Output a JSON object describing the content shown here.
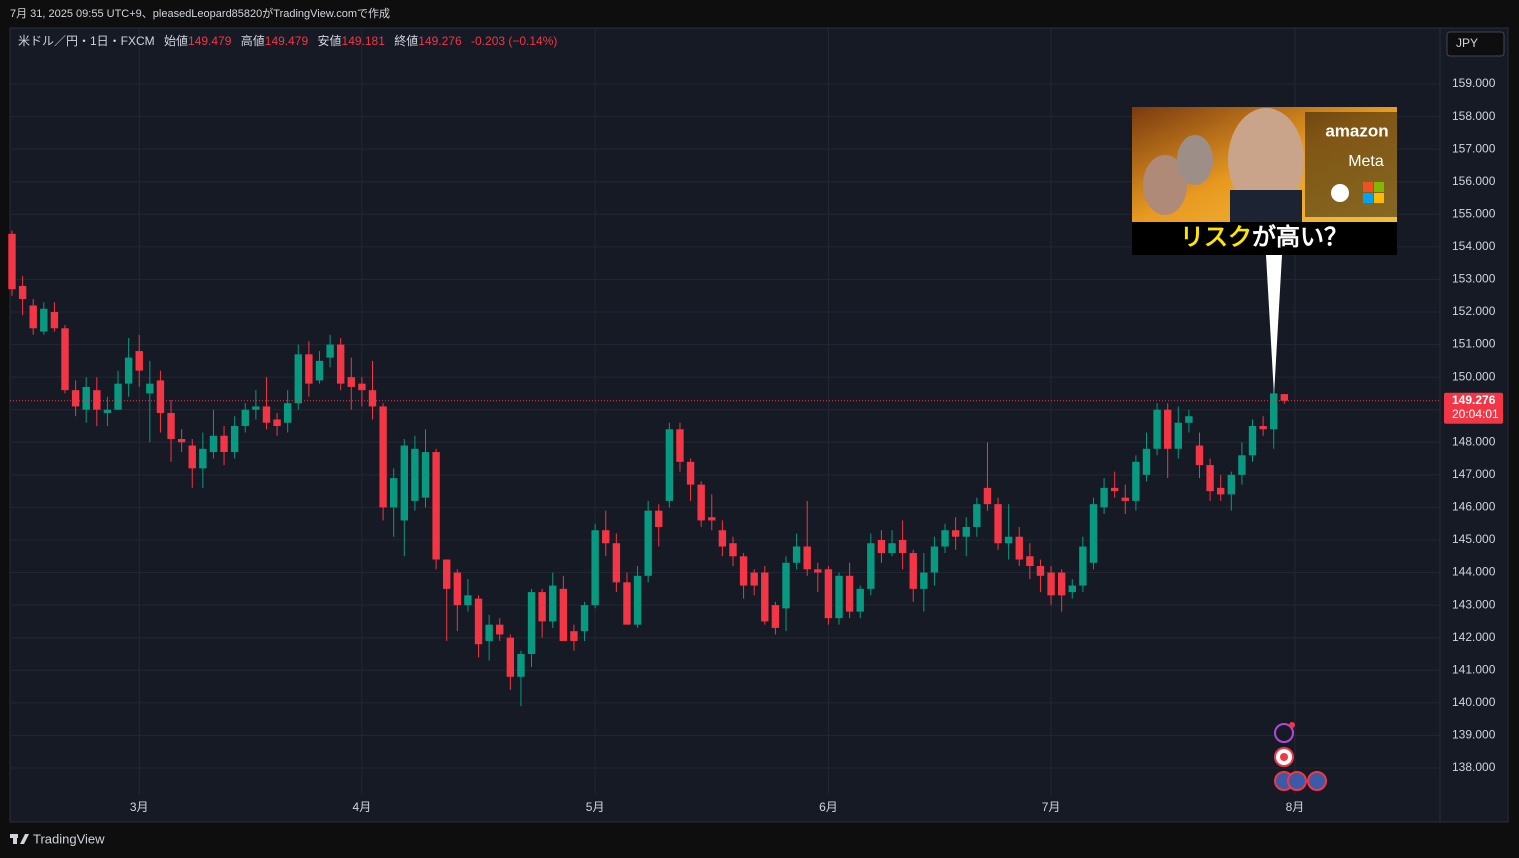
{
  "caption": "7月 31, 2025 09:55 UTC+9、pleasedLeopard85820がTradingView.comで作成",
  "currency_button": "JPY",
  "footer_brand": "TradingView",
  "annotation": {
    "caption_parts": [
      "リスク",
      "が高い？"
    ],
    "logos": [
      "amazon",
      "Meta"
    ]
  },
  "chart_data": {
    "type": "candlestick",
    "title": "米ドル／円・1日・FXCM",
    "ohlc_labels": [
      "始値",
      "高値",
      "安値",
      "終値"
    ],
    "change_label": "-0.203 (−0.14%)",
    "countdown": "20:04:01",
    "up_color": "#089981",
    "down_color": "#f23645",
    "grid": true,
    "xlim": [
      0,
      134.4
    ],
    "xticks": [
      {
        "value": 12,
        "label": "3月"
      },
      {
        "value": 33,
        "label": "4月"
      },
      {
        "value": 55,
        "label": "5月"
      },
      {
        "value": 77,
        "label": "6月"
      },
      {
        "value": 98,
        "label": "7月"
      },
      {
        "value": 121,
        "label": "8月"
      }
    ],
    "ylim": [
      137.17,
      160.72
    ],
    "yticks": [
      {
        "value": 138,
        "label": "138.000"
      },
      {
        "value": 139,
        "label": "139.000"
      },
      {
        "value": 140,
        "label": "140.000"
      },
      {
        "value": 141,
        "label": "141.000"
      },
      {
        "value": 142,
        "label": "142.000"
      },
      {
        "value": 143,
        "label": "143.000"
      },
      {
        "value": 144,
        "label": "144.000"
      },
      {
        "value": 145,
        "label": "145.000"
      },
      {
        "value": 146,
        "label": "146.000"
      },
      {
        "value": 147,
        "label": "147.000"
      },
      {
        "value": 148,
        "label": "148.000"
      },
      {
        "value": 149,
        "label": "149.000"
      },
      {
        "value": 150,
        "label": "150.000"
      },
      {
        "value": 151,
        "label": "151.000"
      },
      {
        "value": 152,
        "label": "152.000"
      },
      {
        "value": 153,
        "label": "153.000"
      },
      {
        "value": 154,
        "label": "154.000"
      },
      {
        "value": 155,
        "label": "155.000"
      },
      {
        "value": 156,
        "label": "156.000"
      },
      {
        "value": 157,
        "label": "157.000"
      },
      {
        "value": 158,
        "label": "158.000"
      },
      {
        "value": 159,
        "label": "159.000"
      }
    ],
    "open": [
      154.4,
      152.8,
      152.2,
      151.4,
      152.0,
      151.5,
      149.6,
      149.0,
      149.6,
      148.9,
      149.0,
      149.8,
      150.8,
      149.5,
      149.9,
      148.9,
      148.1,
      147.9,
      147.2,
      147.7,
      148.2,
      147.7,
      148.5,
      149.0,
      149.1,
      148.7,
      148.6,
      149.2,
      150.7,
      149.9,
      150.6,
      151.0,
      150.0,
      149.8,
      149.6,
      149.1,
      146.0,
      145.6,
      146.2,
      146.3,
      147.7,
      144.4,
      144.0,
      143.0,
      143.2,
      141.9,
      142.4,
      142.0,
      140.8,
      141.5,
      143.4,
      142.5,
      143.5,
      142.2,
      142.2,
      143.0,
      145.3,
      144.9,
      143.7,
      142.4,
      143.9,
      145.9,
      146.2,
      148.4,
      147.4,
      146.7,
      145.7,
      145.3,
      144.9,
      144.5,
      144.0,
      144.0,
      143.0,
      142.9,
      144.3,
      144.8,
      144.1,
      144.1,
      142.6,
      143.9,
      142.8,
      143.5,
      145.0,
      144.6,
      145.0,
      144.6,
      143.5,
      144.0,
      144.8,
      145.3,
      145.1,
      145.4,
      146.6,
      146.1,
      144.9,
      145.1,
      144.5,
      144.2,
      144.0,
      144.0,
      143.4,
      143.6,
      144.3,
      146.0,
      146.6,
      146.3,
      146.2,
      147.0,
      147.8,
      149.0,
      147.8,
      148.6,
      147.9,
      147.3,
      146.6,
      146.4,
      147.0,
      147.6,
      148.5,
      148.4,
      149.479
    ],
    "high": [
      154.5,
      153.1,
      152.4,
      152.3,
      152.3,
      151.6,
      149.9,
      150.0,
      150.0,
      149.4,
      150.2,
      151.2,
      151.3,
      150.5,
      150.2,
      149.3,
      148.4,
      148.1,
      148.3,
      149.0,
      148.5,
      148.8,
      149.2,
      149.6,
      150.0,
      148.9,
      149.6,
      151.0,
      151.1,
      150.8,
      151.3,
      151.2,
      150.6,
      150.0,
      150.5,
      149.2,
      147.2,
      148.1,
      148.2,
      148.4,
      147.8,
      144.4,
      144.1,
      143.8,
      143.3,
      142.7,
      142.6,
      142.1,
      141.6,
      143.5,
      143.5,
      144.0,
      143.9,
      142.4,
      143.1,
      145.5,
      145.9,
      145.2,
      144.0,
      144.2,
      146.2,
      146.1,
      148.6,
      148.6,
      147.5,
      146.8,
      146.4,
      145.6,
      145.1,
      144.6,
      144.1,
      144.2,
      143.1,
      144.5,
      145.2,
      146.2,
      144.3,
      144.2,
      144.0,
      144.3,
      143.6,
      145.2,
      145.3,
      145.3,
      145.6,
      144.7,
      144.6,
      145.1,
      145.5,
      145.7,
      145.7,
      146.3,
      148.0,
      146.3,
      146.1,
      145.4,
      144.9,
      144.4,
      144.2,
      144.1,
      143.8,
      145.1,
      146.3,
      146.9,
      147.1,
      146.7,
      147.6,
      148.3,
      149.2,
      149.2,
      149.1,
      149.0,
      148.3,
      147.5,
      147.0,
      147.1,
      148.0,
      148.7,
      148.8,
      149.6,
      149.479
    ],
    "low": [
      152.5,
      151.9,
      151.3,
      151.3,
      151.4,
      149.5,
      148.8,
      148.6,
      148.5,
      148.5,
      149.0,
      149.4,
      149.7,
      148.0,
      148.3,
      147.4,
      147.7,
      146.6,
      146.6,
      147.5,
      147.3,
      147.5,
      148.3,
      148.7,
      148.4,
      148.2,
      148.3,
      149.0,
      149.4,
      149.8,
      150.3,
      149.6,
      149.0,
      149.1,
      148.7,
      145.6,
      145.1,
      144.5,
      145.9,
      146.0,
      144.1,
      141.9,
      142.2,
      142.8,
      141.4,
      141.3,
      141.9,
      140.4,
      139.9,
      141.1,
      142.0,
      142.3,
      141.9,
      141.6,
      141.9,
      142.9,
      144.5,
      143.4,
      142.4,
      142.3,
      143.7,
      144.8,
      146.0,
      147.1,
      146.2,
      145.4,
      145.3,
      144.5,
      144.2,
      143.2,
      143.3,
      142.4,
      142.1,
      142.2,
      144.1,
      143.9,
      143.4,
      142.4,
      142.4,
      142.6,
      142.6,
      143.3,
      144.3,
      144.5,
      144.1,
      143.1,
      142.8,
      143.6,
      144.6,
      144.7,
      144.5,
      145.1,
      145.9,
      144.7,
      144.4,
      144.2,
      143.8,
      143.4,
      143.0,
      142.8,
      143.2,
      143.4,
      144.1,
      145.8,
      146.3,
      145.8,
      145.9,
      146.8,
      147.6,
      146.9,
      147.5,
      148.3,
      146.9,
      146.2,
      146.2,
      145.9,
      146.7,
      147.4,
      148.2,
      147.8,
      149.181
    ],
    "close": [
      152.7,
      152.4,
      151.5,
      152.1,
      151.5,
      149.6,
      149.1,
      149.7,
      149.0,
      149.0,
      149.8,
      150.6,
      150.2,
      149.8,
      148.9,
      148.1,
      148.0,
      147.2,
      147.8,
      148.2,
      147.7,
      148.5,
      149.0,
      149.1,
      148.6,
      148.5,
      149.2,
      150.7,
      149.8,
      150.5,
      151.0,
      149.8,
      149.7,
      149.6,
      149.1,
      146.0,
      146.9,
      147.9,
      147.8,
      147.7,
      144.4,
      143.5,
      143.0,
      143.3,
      141.8,
      142.4,
      142.1,
      140.8,
      141.5,
      143.4,
      142.5,
      143.6,
      141.9,
      141.9,
      143.0,
      145.3,
      144.9,
      143.7,
      142.4,
      143.9,
      145.9,
      145.4,
      148.4,
      147.4,
      146.7,
      145.6,
      145.6,
      144.8,
      144.5,
      143.6,
      143.6,
      142.5,
      142.3,
      144.3,
      144.8,
      144.1,
      144.0,
      142.6,
      143.9,
      142.8,
      143.5,
      144.9,
      144.6,
      144.9,
      144.6,
      143.5,
      144.0,
      144.8,
      145.3,
      145.1,
      145.4,
      146.1,
      146.1,
      144.9,
      145.1,
      144.4,
      144.2,
      143.9,
      143.3,
      143.3,
      143.6,
      144.8,
      146.1,
      146.6,
      146.5,
      146.2,
      147.4,
      147.8,
      149.0,
      147.8,
      148.6,
      148.8,
      147.3,
      146.5,
      146.4,
      147.0,
      147.6,
      148.5,
      148.4,
      149.5,
      149.276
    ]
  }
}
